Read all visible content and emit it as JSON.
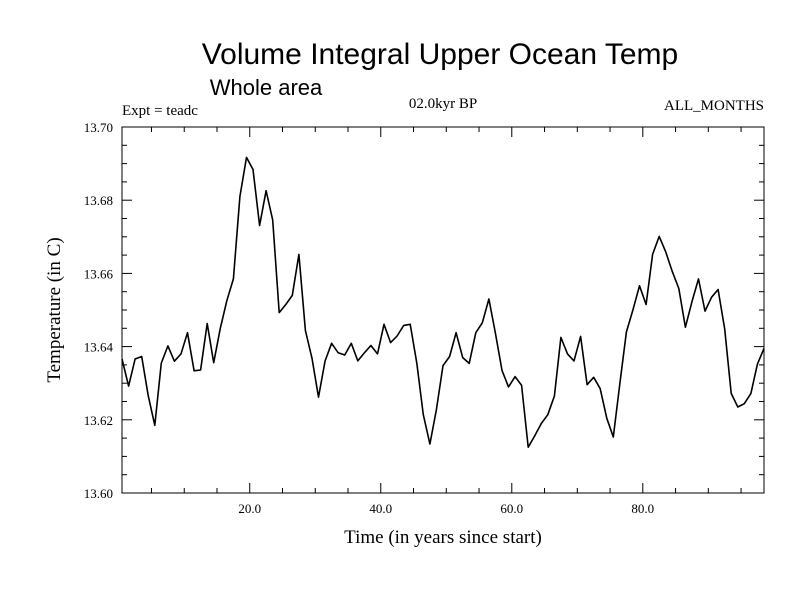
{
  "chart_data": {
    "type": "line",
    "title": "Volume Integral Upper Ocean Temp",
    "subtitle": "Whole area",
    "expt_label": "Expt = teadc",
    "period_label": "02.0kyr BP",
    "months_label": "ALL_MONTHS",
    "xlabel": "Time (in years since start)",
    "ylabel": "Temperature (in C)",
    "xlim": [
      0.5,
      98.5
    ],
    "ylim": [
      13.6,
      13.7
    ],
    "x_ticks": [
      20.0,
      40.0,
      60.0,
      80.0
    ],
    "x_tick_labels": [
      "20.0",
      "40.0",
      "60.0",
      "80.0"
    ],
    "y_ticks": [
      13.6,
      13.62,
      13.64,
      13.66,
      13.68,
      13.7
    ],
    "y_tick_labels": [
      "13.60",
      "13.62",
      "13.64",
      "13.66",
      "13.68",
      "13.70"
    ],
    "series": [
      {
        "name": "Upper Ocean Temp",
        "x": [
          0.5,
          1.5,
          2.5,
          3.5,
          4.5,
          5.5,
          6.5,
          7.5,
          8.5,
          9.5,
          10.5,
          11.5,
          12.5,
          13.5,
          14.5,
          15.5,
          16.5,
          17.5,
          18.5,
          19.5,
          20.5,
          21.5,
          22.5,
          23.5,
          24.5,
          25.5,
          26.5,
          27.5,
          28.5,
          29.5,
          30.5,
          31.5,
          32.5,
          33.5,
          34.5,
          35.5,
          36.5,
          37.5,
          38.5,
          39.5,
          40.5,
          41.5,
          42.5,
          43.5,
          44.5,
          45.5,
          46.5,
          47.5,
          48.5,
          49.5,
          50.5,
          51.5,
          52.5,
          53.5,
          54.5,
          55.5,
          56.5,
          57.5,
          58.5,
          59.5,
          60.5,
          61.5,
          62.5,
          63.5,
          64.5,
          65.5,
          66.5,
          67.5,
          68.5,
          69.5,
          70.5,
          71.5,
          72.5,
          73.5,
          74.5,
          75.5,
          76.5,
          77.5,
          78.5,
          79.5,
          80.5,
          81.5,
          82.5,
          83.5,
          84.5,
          85.5,
          86.5,
          87.5,
          88.5,
          89.5,
          90.5,
          91.5,
          92.5,
          93.5,
          94.5,
          95.5,
          96.5,
          97.5,
          98.5
        ],
        "values": [
          13.6366,
          13.6292,
          13.6366,
          13.6373,
          13.6266,
          13.6185,
          13.6355,
          13.6402,
          13.636,
          13.638,
          13.6438,
          13.6334,
          13.6336,
          13.6463,
          13.6356,
          13.645,
          13.6525,
          13.6585,
          13.681,
          13.6917,
          13.6884,
          13.6731,
          13.6826,
          13.6746,
          13.6493,
          13.6515,
          13.654,
          13.6652,
          13.6444,
          13.6368,
          13.6262,
          13.6361,
          13.6409,
          13.6383,
          13.6377,
          13.6409,
          13.6361,
          13.6383,
          13.6403,
          13.638,
          13.6461,
          13.6411,
          13.6429,
          13.6458,
          13.6461,
          13.6355,
          13.6214,
          13.6134,
          13.6228,
          13.6348,
          13.6373,
          13.6438,
          13.637,
          13.6354,
          13.6438,
          13.6465,
          13.653,
          13.6437,
          13.6335,
          13.629,
          13.6318,
          13.6294,
          13.6125,
          13.6156,
          13.619,
          13.6214,
          13.6265,
          13.6425,
          13.638,
          13.6361,
          13.6428,
          13.6296,
          13.6316,
          13.6285,
          13.6204,
          13.6153,
          13.63,
          13.644,
          13.6501,
          13.6566,
          13.6515,
          13.6652,
          13.6701,
          13.6659,
          13.6605,
          13.6559,
          13.6453,
          13.6522,
          13.6585,
          13.6497,
          13.6535,
          13.6556,
          13.6448,
          13.6272,
          13.6235,
          13.6244,
          13.6272,
          13.6352,
          13.6395
        ]
      }
    ]
  }
}
